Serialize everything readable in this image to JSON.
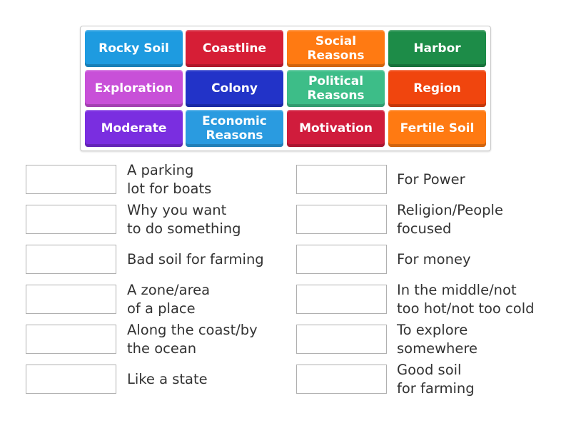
{
  "tiles": [
    {
      "label": "Rocky Soil",
      "color": "#1e9be0"
    },
    {
      "label": "Coastline",
      "color": "#d61e36"
    },
    {
      "label": "Social Reasons",
      "color": "#ff7a12"
    },
    {
      "label": "Harbor",
      "color": "#1d8c48"
    },
    {
      "label": "Exploration",
      "color": "#c850d8"
    },
    {
      "label": "Colony",
      "color": "#2233c8"
    },
    {
      "label": "Political Reasons",
      "color": "#3dbd88"
    },
    {
      "label": "Region",
      "color": "#f0450e"
    },
    {
      "label": "Moderate",
      "color": "#7a2ee0"
    },
    {
      "label": "Economic Reasons",
      "color": "#2a9be0"
    },
    {
      "label": "Motivation",
      "color": "#d01c3c"
    },
    {
      "label": "Fertile Soil",
      "color": "#ff7a12"
    }
  ],
  "clues_left": [
    "A parking\nlot for boats",
    "Why you want\nto do something",
    "Bad soil for farming",
    "A zone/area\nof a place",
    "Along the coast/by\nthe ocean",
    "Like a state"
  ],
  "clues_right": [
    "For Power",
    "Religion/People\nfocused",
    "For money",
    "In the middle/not\ntoo hot/not too cold",
    "To explore\nsomewhere",
    "Good soil\nfor farming"
  ]
}
